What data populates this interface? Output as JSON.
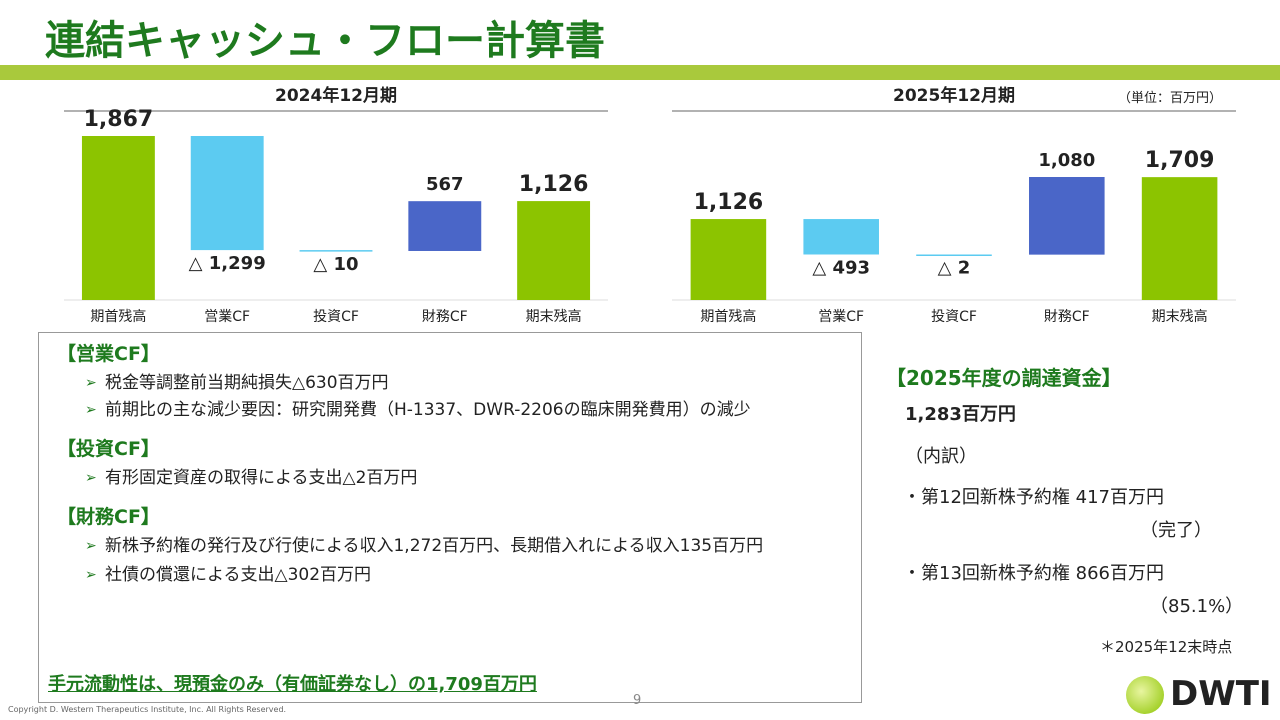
{
  "title": "連結キャッシュ・フロー計算書",
  "unit": "（単位：百万円）",
  "chart_data": [
    {
      "type": "waterfall",
      "title": "2024年12月期",
      "categories": [
        "期首残高",
        "営業CF",
        "投資CF",
        "財務CF",
        "期末残高"
      ],
      "values": [
        1867,
        -1299,
        -10,
        567,
        1126
      ],
      "value_labels": [
        "1,867",
        "△ 1,299",
        "△ 10",
        "567",
        "1,126"
      ],
      "colors": [
        "#8cc400",
        "#5ccbf1",
        "#5ccbf1",
        "#4a66c8",
        "#8cc400"
      ]
    },
    {
      "type": "waterfall",
      "title": "2025年12月期",
      "categories": [
        "期首残高",
        "営業CF",
        "投資CF",
        "財務CF",
        "期末残高"
      ],
      "values": [
        1126,
        -493,
        -2,
        1080,
        1709
      ],
      "value_labels": [
        "1,126",
        "△ 493",
        "△ 2",
        "1,080",
        "1,709"
      ],
      "colors": [
        "#8cc400",
        "#5ccbf1",
        "#5ccbf1",
        "#4a66c8",
        "#8cc400"
      ]
    }
  ],
  "sections": [
    {
      "heading": "【営業CF】",
      "items": [
        "税金等調整前当期純損失△630百万円",
        "前期比の主な減少要因：研究開発費（H-1337、DWR-2206の臨床開発費用）の減少"
      ]
    },
    {
      "heading": "【投資CF】",
      "items": [
        "有形固定資産の取得による支出△2百万円"
      ]
    },
    {
      "heading": "【財務CF】",
      "items": [
        "新株予約権の発行及び行使による収入1,272百万円、長期借入れによる収入135百万円",
        "社債の償還による支出△302百万円"
      ]
    }
  ],
  "conclusion": "手元流動性は、現預金のみ（有価証券なし）の1,709百万円",
  "funding": {
    "heading": "【2025年度の調達資金】",
    "total": "1,283百万円",
    "breakdown": "（内訳）",
    "items": [
      {
        "text": "・第12回新株予約権 417百万円",
        "note": "（完了）"
      },
      {
        "text": "・第13回新株予約権 866百万円",
        "note": "（85.1%）"
      }
    ],
    "footnote": "＊2025年12末時点"
  },
  "page": "9",
  "copyright": "Copyright D. Western Therapeutics Institute, Inc. All Rights Reserved.",
  "logo": "DWTI"
}
